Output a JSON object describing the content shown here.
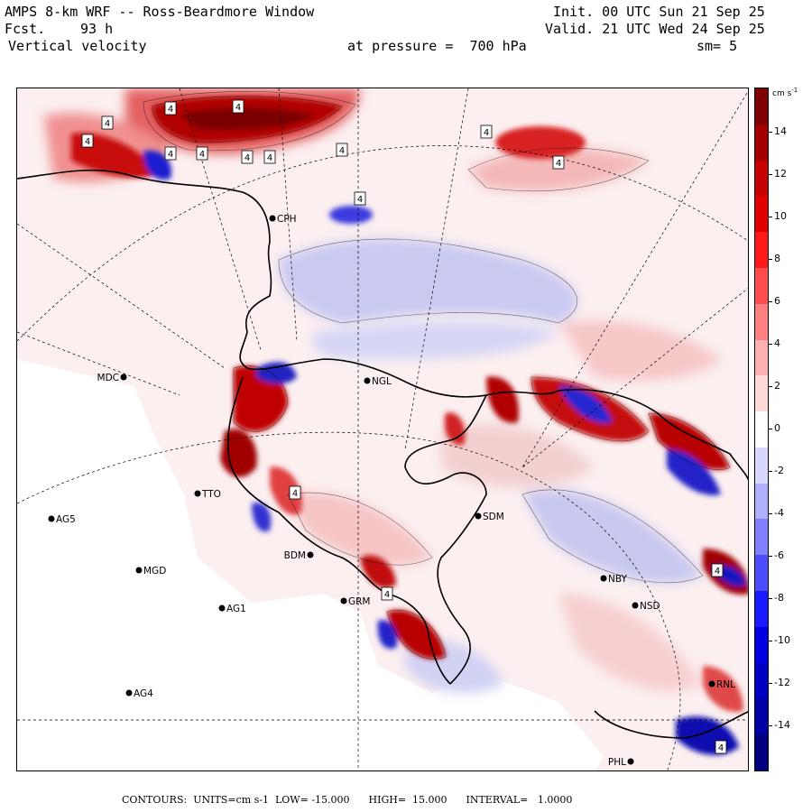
{
  "header": {
    "title": "AMPS 8-km WRF -- Ross-Beardmore Window",
    "init": "Init. 00 UTC Sun 21 Sep 25",
    "fcst_label": "Fcst.",
    "fcst_value": "93 h",
    "valid": "Valid. 21 UTC Wed 24 Sep 25",
    "field": "Vertical velocity",
    "level": "at pressure =  700 hPa",
    "smoothing": "sm= 5"
  },
  "colorbar": {
    "units_label": "cm s",
    "units_exp": "-1",
    "ticks": [
      "14",
      "12",
      "10",
      "8",
      "6",
      "4",
      "2",
      "0",
      "-2",
      "-4",
      "-6",
      "-8",
      "-10",
      "-12",
      "-14"
    ],
    "colors": [
      "#7f0000",
      "#a50000",
      "#c40000",
      "#e00000",
      "#ff1a1a",
      "#ff4d4d",
      "#ff8080",
      "#ffb0b0",
      "#ffd8d8",
      "#ffffff",
      "#d8d8ff",
      "#b0b0ff",
      "#8080ff",
      "#4d4dff",
      "#1a1aff",
      "#0000e0",
      "#0000c4",
      "#0000a5",
      "#00007f"
    ]
  },
  "footer": {
    "text": "CONTOURS:  UNITS=cm s-1  LOW= -15.000      HIGH=  15.000      INTERVAL=   1.0000"
  },
  "stations": [
    {
      "name": "MDC",
      "side": "left"
    },
    {
      "name": "NGL",
      "side": "right"
    },
    {
      "name": "CPH",
      "side": "right"
    },
    {
      "name": "TTO",
      "side": "right"
    },
    {
      "name": "AG5",
      "side": "right"
    },
    {
      "name": "SDM",
      "side": "right"
    },
    {
      "name": "MGD",
      "side": "right"
    },
    {
      "name": "BDM",
      "side": "left"
    },
    {
      "name": "GRM",
      "side": "right"
    },
    {
      "name": "AG1",
      "side": "right"
    },
    {
      "name": "NBY",
      "side": "right"
    },
    {
      "name": "NSD",
      "side": "right"
    },
    {
      "name": "AG4",
      "side": "right"
    },
    {
      "name": "PHL",
      "side": "left"
    },
    {
      "name": "RNL",
      "side": "right"
    }
  ],
  "extrema_markers": [
    "4",
    "4",
    "4",
    "4",
    "4",
    "4",
    "4",
    "4",
    "4",
    "4",
    "4",
    "4",
    "4",
    "4",
    "4",
    "4"
  ]
}
